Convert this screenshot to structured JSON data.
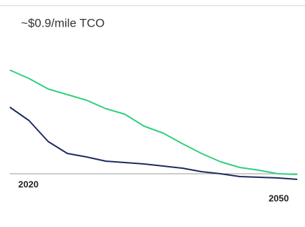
{
  "chart_data": {
    "type": "line",
    "annotations": [
      "~$0.9/mile TCO"
    ],
    "x": [
      2020,
      2022,
      2024,
      2026,
      2028,
      2030,
      2032,
      2034,
      2036,
      2038,
      2040,
      2042,
      2044,
      2046,
      2048,
      2050
    ],
    "series": [
      {
        "color": "#2fcf7c",
        "values": [
          148,
          136,
          121,
          113,
          105,
          93,
          85,
          68,
          58,
          43,
          29,
          17,
          9,
          5,
          0,
          -1
        ]
      },
      {
        "color": "#1b2a5e",
        "values": [
          95,
          76,
          46,
          29,
          24,
          18,
          16,
          14,
          11,
          8,
          3,
          0,
          -4,
          -5,
          -6,
          -8
        ]
      }
    ],
    "xlim": [
      2020,
      2050
    ],
    "xticks": [
      2020,
      2050
    ],
    "ylim": [
      -20,
      160
    ]
  }
}
